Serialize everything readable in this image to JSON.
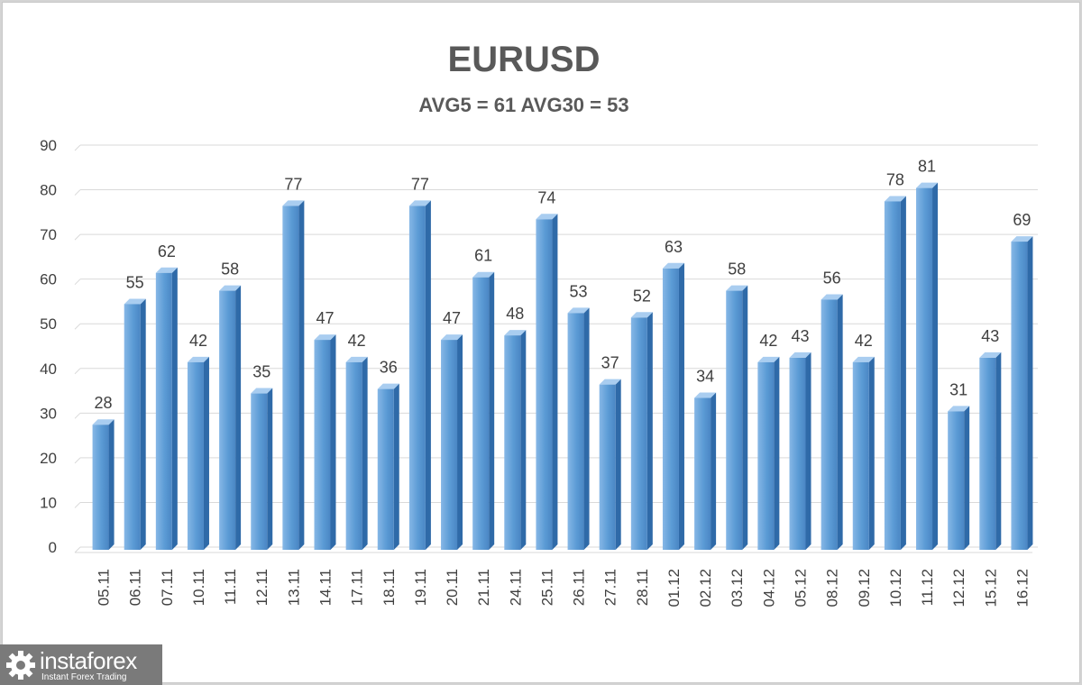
{
  "chart_data": {
    "type": "bar",
    "title": "EURUSD",
    "subtitle": "AVG5 = 61 AVG30 = 53",
    "xlabel": "",
    "ylabel": "",
    "ylim": [
      0,
      90
    ],
    "yticks": [
      0,
      10,
      20,
      30,
      40,
      50,
      60,
      70,
      80,
      90
    ],
    "grid": true,
    "legend": "none",
    "bar_color": "#5b9bd5",
    "categories": [
      "05.11",
      "06.11",
      "07.11",
      "10.11",
      "11.11",
      "12.11",
      "13.11",
      "14.11",
      "17.11",
      "18.11",
      "19.11",
      "20.11",
      "21.11",
      "24.11",
      "25.11",
      "26.11",
      "27.11",
      "28.11",
      "01.12",
      "02.12",
      "03.12",
      "04.12",
      "05.12",
      "08.12",
      "09.12",
      "10.12",
      "11.12",
      "12.12",
      "15.12",
      "16.12"
    ],
    "values": [
      28,
      55,
      62,
      42,
      58,
      35,
      77,
      47,
      42,
      36,
      77,
      47,
      61,
      48,
      74,
      53,
      37,
      52,
      63,
      34,
      58,
      42,
      43,
      56,
      42,
      78,
      81,
      31,
      43,
      69
    ]
  },
  "logo": {
    "brand": "instaforex",
    "tagline": "Instant Forex Trading",
    "icon": "gear-icon"
  }
}
